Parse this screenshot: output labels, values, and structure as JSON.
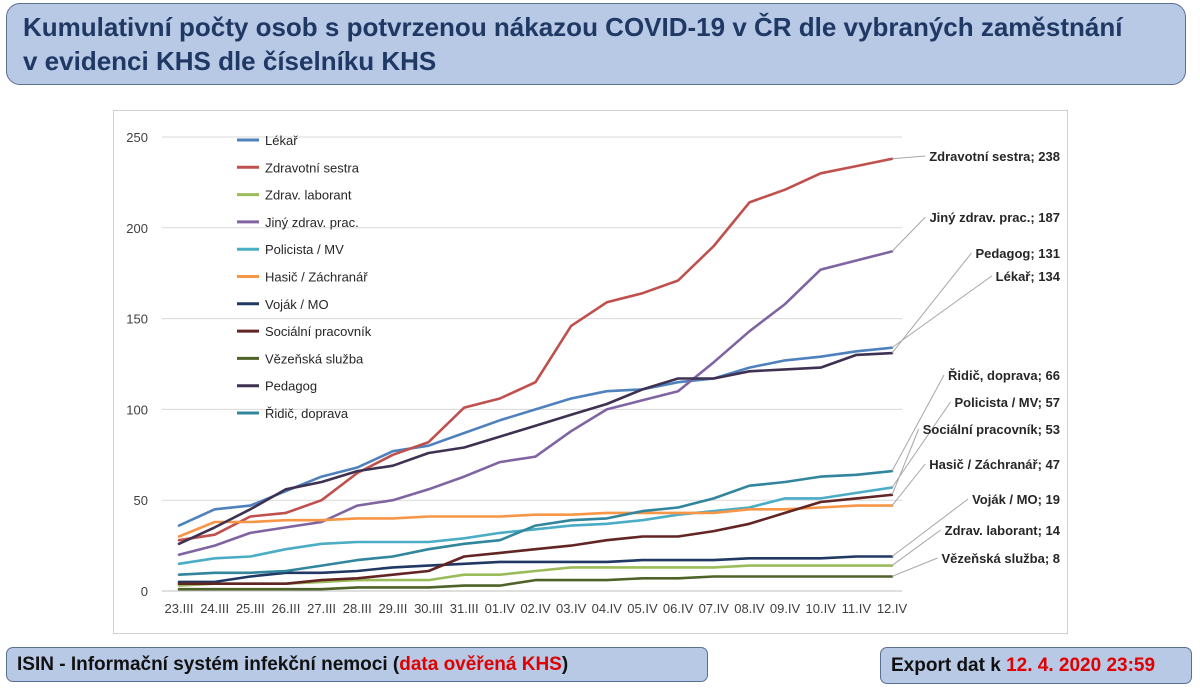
{
  "title": {
    "line1": "Kumulativní počty osob s potvrzenou nákazou COVID-19 v ČR dle vybraných zaměstnání",
    "line2": "v evidenci KHS dle číselníku KHS"
  },
  "footer": {
    "left_prefix": "ISIN - Informační systém infekční nemoci (",
    "left_highlight": "data ověřená KHS",
    "left_suffix": ")",
    "right_prefix": "Export dat k ",
    "right_highlight": "12. 4. 2020 23:59"
  },
  "chart_data": {
    "type": "line",
    "ylim": [
      0,
      250
    ],
    "yticks": [
      0,
      50,
      100,
      150,
      200,
      250
    ],
    "grid": true,
    "legend_position": "top-left",
    "categories": [
      "23.III",
      "24.III",
      "25.III",
      "26.III",
      "27.III",
      "28.III",
      "29.III",
      "30.III",
      "31.III",
      "01.IV",
      "02.IV",
      "03.IV",
      "04.IV",
      "05.IV",
      "06.IV",
      "07.IV",
      "08.IV",
      "09.IV",
      "10.IV",
      "11.IV",
      "12.IV"
    ],
    "series": [
      {
        "name": "Lékař",
        "color": "#4f81bd",
        "end_label": "Lékař; 134",
        "values": [
          36,
          45,
          47,
          55,
          63,
          68,
          77,
          80,
          87,
          94,
          100,
          106,
          110,
          111,
          115,
          117,
          123,
          127,
          129,
          132,
          134
        ]
      },
      {
        "name": "Zdravotní sestra",
        "color": "#c0504d",
        "end_label": "Zdravotní sestra; 238",
        "values": [
          28,
          31,
          41,
          43,
          50,
          65,
          75,
          82,
          101,
          106,
          115,
          146,
          159,
          164,
          171,
          190,
          214,
          221,
          230,
          234,
          238
        ]
      },
      {
        "name": "Zdrav. laborant",
        "color": "#9bbb59",
        "end_label": "Zdrav. laborant; 14",
        "values": [
          3,
          4,
          4,
          4,
          5,
          6,
          6,
          6,
          9,
          9,
          11,
          13,
          13,
          13,
          13,
          13,
          14,
          14,
          14,
          14,
          14
        ]
      },
      {
        "name": "Jiný zdrav. prac.",
        "color": "#8064a2",
        "end_label": "Jiný zdrav. prac.; 187",
        "values": [
          20,
          25,
          32,
          35,
          38,
          47,
          50,
          56,
          63,
          71,
          74,
          88,
          100,
          105,
          110,
          126,
          143,
          158,
          177,
          182,
          187
        ]
      },
      {
        "name": "Policista / MV",
        "color": "#4bacc6",
        "end_label": "Policista / MV; 57",
        "values": [
          15,
          18,
          19,
          23,
          26,
          27,
          27,
          27,
          29,
          32,
          34,
          36,
          37,
          39,
          42,
          44,
          46,
          51,
          51,
          54,
          57
        ]
      },
      {
        "name": "Hasič / Záchranář",
        "color": "#f79646",
        "end_label": "Hasič / Záchranář; 47",
        "values": [
          30,
          38,
          38,
          39,
          39,
          40,
          40,
          41,
          41,
          41,
          42,
          42,
          43,
          43,
          43,
          43,
          45,
          45,
          46,
          47,
          47
        ]
      },
      {
        "name": "Voják / MO",
        "color": "#1f3864",
        "end_label": "Voják / MO; 19",
        "values": [
          5,
          5,
          8,
          10,
          10,
          11,
          13,
          14,
          15,
          16,
          16,
          16,
          16,
          17,
          17,
          17,
          18,
          18,
          18,
          19,
          19
        ]
      },
      {
        "name": "Sociální pracovník",
        "color": "#632523",
        "end_label": "Sociální pracovník; 53",
        "values": [
          4,
          4,
          4,
          4,
          6,
          7,
          9,
          11,
          19,
          21,
          23,
          25,
          28,
          30,
          30,
          33,
          37,
          43,
          49,
          51,
          53
        ]
      },
      {
        "name": "Vězeňská služba",
        "color": "#4f6228",
        "end_label": "Vězeňská služba; 8",
        "values": [
          1,
          1,
          1,
          1,
          1,
          2,
          2,
          2,
          3,
          3,
          6,
          6,
          6,
          7,
          7,
          8,
          8,
          8,
          8,
          8,
          8
        ]
      },
      {
        "name": "Pedagog",
        "color": "#3f3151",
        "end_label": "Pedagog; 131",
        "values": [
          26,
          35,
          45,
          56,
          60,
          66,
          69,
          76,
          79,
          85,
          91,
          97,
          103,
          111,
          117,
          117,
          121,
          122,
          123,
          130,
          131
        ]
      },
      {
        "name": "Řidič, doprava",
        "color": "#31859c",
        "end_label": "Řidič, doprava; 66",
        "values": [
          9,
          10,
          10,
          11,
          14,
          17,
          19,
          23,
          26,
          28,
          36,
          39,
          40,
          44,
          46,
          51,
          58,
          60,
          63,
          64,
          66
        ]
      }
    ]
  }
}
